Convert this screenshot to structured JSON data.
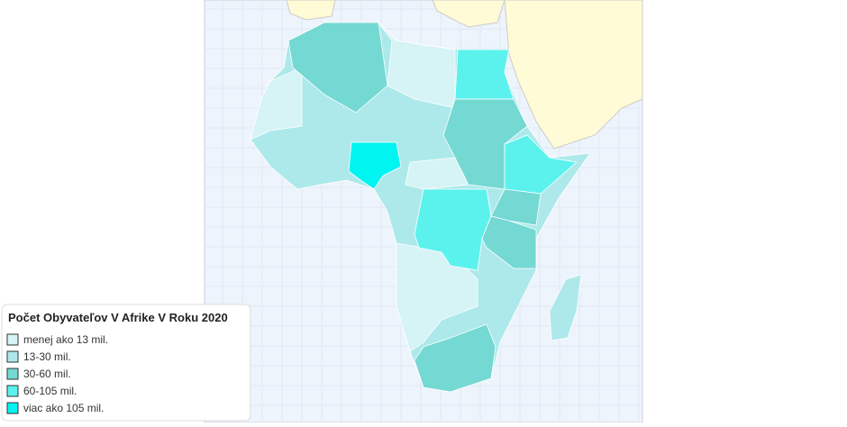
{
  "legend": {
    "title": "Počet Obyvateľov V Afrike V Roku 2020",
    "items": [
      {
        "label": "menej ako 13 mil.",
        "color": "#d6f3f5"
      },
      {
        "label": "13-30 mil.",
        "color": "#ade9ea"
      },
      {
        "label": "30-60 mil.",
        "color": "#74d8d3"
      },
      {
        "label": "60-105 mil.",
        "color": "#5bf2ee"
      },
      {
        "label": "viac ako 105 mil.",
        "color": "#00f5f0"
      }
    ]
  }
}
